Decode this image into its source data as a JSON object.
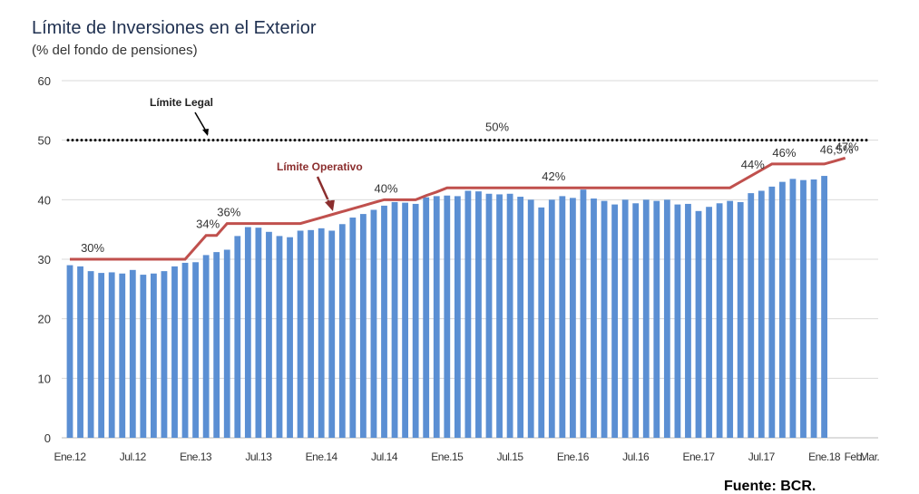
{
  "chart_data": {
    "type": "bar-line",
    "title": "Límite de Inversiones en el Exterior",
    "subtitle": "(% del fondo de pensiones)",
    "source": "Fuente: BCR.",
    "categories": [
      "Ene.12",
      null,
      null,
      null,
      null,
      null,
      "Jul.12",
      null,
      null,
      null,
      null,
      null,
      "Ene.13",
      null,
      null,
      null,
      null,
      null,
      "Jul.13",
      null,
      null,
      null,
      null,
      null,
      "Ene.14",
      null,
      null,
      null,
      null,
      null,
      "Jul.14",
      null,
      null,
      null,
      null,
      null,
      "Ene.15",
      null,
      null,
      null,
      null,
      null,
      "Jul.15",
      null,
      null,
      null,
      null,
      null,
      "Ene.16",
      null,
      null,
      null,
      null,
      null,
      "Jul.16",
      null,
      null,
      null,
      null,
      null,
      "Ene.17",
      null,
      null,
      null,
      null,
      null,
      "Jul.17",
      null,
      null,
      null,
      null,
      null,
      "Ene.18",
      "Feb.",
      "Mar."
    ],
    "series": [
      {
        "type": "bar",
        "color": "#5b8fd3",
        "values": [
          29.0,
          28.8,
          28.0,
          27.7,
          27.8,
          27.6,
          28.2,
          27.4,
          27.6,
          28.0,
          28.8,
          29.4,
          29.5,
          30.7,
          31.2,
          31.6,
          33.9,
          35.4,
          35.3,
          34.6,
          33.9,
          33.7,
          34.8,
          34.9,
          35.2,
          34.8,
          35.9,
          37.0,
          37.6,
          38.3,
          39.0,
          39.6,
          39.5,
          39.3,
          40.4,
          40.6,
          40.7,
          40.6,
          41.5,
          41.4,
          41.0,
          40.9,
          41.0,
          40.5,
          40.0,
          38.7,
          40.0,
          40.6,
          40.3,
          41.7,
          40.2,
          39.8,
          39.2,
          40.0,
          39.4,
          40.0,
          39.8,
          40.0,
          39.2,
          39.3,
          38.1,
          38.8,
          39.4,
          39.8,
          39.6,
          41.1,
          41.5,
          42.2,
          43.0,
          43.5,
          43.3,
          43.4,
          44.0,
          null,
          null
        ]
      },
      {
        "type": "line",
        "name": "Límite Operativo",
        "color": "#c0504d",
        "values": [
          30,
          30,
          30,
          30,
          30,
          30,
          30,
          30,
          30,
          30,
          30,
          30,
          32,
          34,
          34,
          36,
          36,
          36,
          36,
          36,
          36,
          36,
          36,
          36.5,
          37,
          37.5,
          38,
          38.5,
          39,
          39.5,
          40,
          40,
          40,
          40,
          40.7,
          41.3,
          42,
          42,
          42,
          42,
          42,
          42,
          42,
          42,
          42,
          42,
          42,
          42,
          42,
          42,
          42,
          42,
          42,
          42,
          42,
          42,
          42,
          42,
          42,
          42,
          42,
          42,
          42,
          42,
          43,
          44,
          45,
          46,
          46,
          46,
          46,
          46,
          46,
          46.5,
          47
        ],
        "value_labels": [
          null,
          null,
          "30%",
          null,
          null,
          null,
          null,
          null,
          null,
          null,
          null,
          null,
          null,
          "34%",
          null,
          "36%",
          null,
          null,
          null,
          null,
          null,
          null,
          null,
          null,
          null,
          null,
          null,
          null,
          null,
          null,
          "40%",
          null,
          null,
          null,
          null,
          null,
          null,
          null,
          null,
          null,
          null,
          null,
          null,
          null,
          null,
          null,
          "42%",
          null,
          null,
          null,
          null,
          null,
          null,
          null,
          null,
          null,
          null,
          null,
          null,
          null,
          null,
          null,
          null,
          null,
          null,
          "44%",
          null,
          null,
          "46%",
          null,
          null,
          null,
          null,
          "46,5%",
          "47%"
        ]
      }
    ],
    "hlines": [
      {
        "name": "Límite Legal",
        "value": 50,
        "value_label": "50%",
        "color": "#000000"
      }
    ],
    "ylim": [
      0,
      60
    ],
    "yticks": [
      0,
      10,
      20,
      30,
      40,
      50,
      60
    ],
    "grid": true
  }
}
